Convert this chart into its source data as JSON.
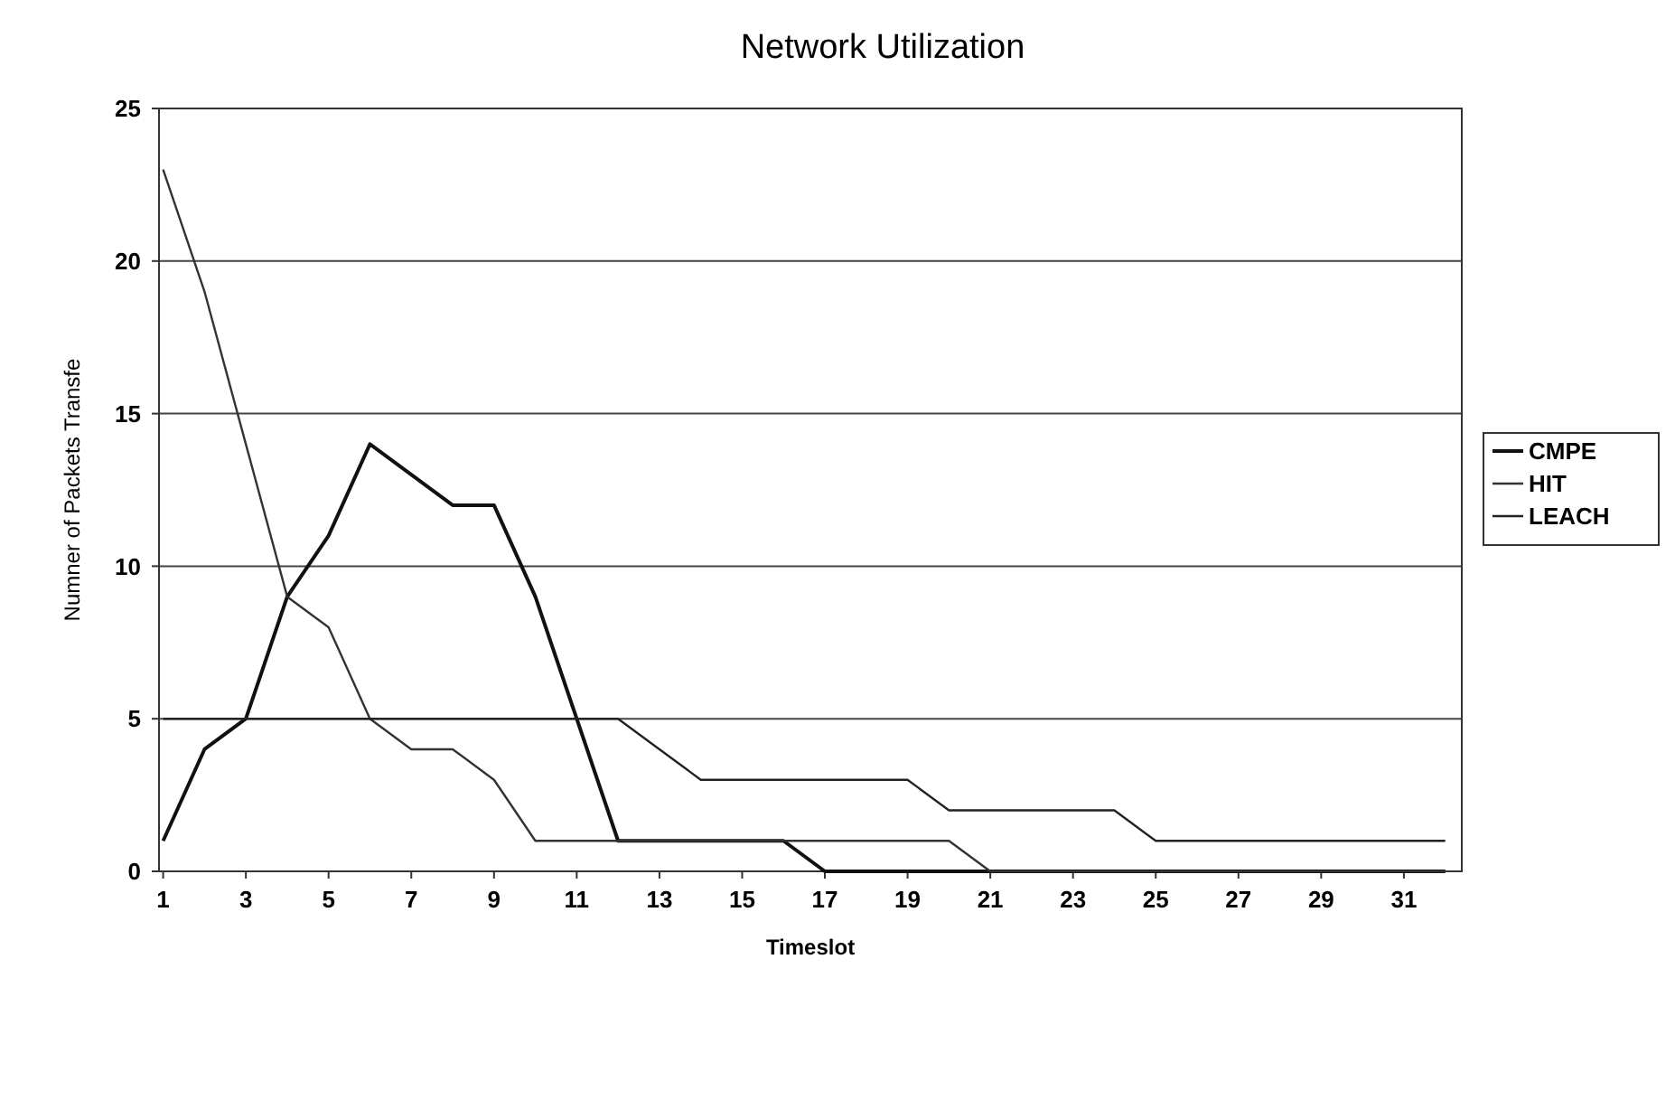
{
  "chart_data": {
    "type": "line",
    "title": "Network Utilization",
    "xlabel": "Timeslot",
    "ylabel": "Numner of Packets Transfe",
    "x": [
      1,
      2,
      3,
      4,
      5,
      6,
      7,
      8,
      9,
      10,
      11,
      12,
      13,
      14,
      15,
      16,
      17,
      18,
      19,
      20,
      21,
      22,
      23,
      24,
      25,
      26,
      27,
      28,
      29,
      30,
      31,
      32
    ],
    "xlim": [
      0.9,
      32.4
    ],
    "xticks": [
      1,
      3,
      5,
      7,
      9,
      11,
      13,
      15,
      17,
      19,
      21,
      23,
      25,
      27,
      29,
      31
    ],
    "ylim": [
      0,
      25
    ],
    "yticks": [
      0,
      5,
      10,
      15,
      20,
      25
    ],
    "grid": "y",
    "legend": "right",
    "line_style": "solid",
    "series": [
      {
        "name": "CMPE",
        "color": "#111111",
        "values": [
          1,
          4,
          5,
          9,
          11,
          14,
          13,
          12,
          12,
          9,
          5,
          1,
          1,
          1,
          1,
          1,
          0,
          0,
          0,
          0,
          0,
          0,
          0,
          0,
          0,
          0,
          0,
          0,
          0,
          0,
          0,
          0
        ]
      },
      {
        "name": "HIT",
        "color": "#333333",
        "values": [
          23,
          19,
          14,
          9,
          8,
          5,
          4,
          4,
          3,
          1,
          1,
          1,
          1,
          1,
          1,
          1,
          1,
          1,
          1,
          1,
          0,
          0,
          0,
          0,
          0,
          0,
          0,
          0,
          0,
          0,
          0,
          0
        ]
      },
      {
        "name": "LEACH",
        "color": "#222222",
        "values": [
          5,
          5,
          5,
          5,
          5,
          5,
          5,
          5,
          5,
          5,
          5,
          5,
          4,
          3,
          3,
          3,
          3,
          3,
          3,
          2,
          2,
          2,
          2,
          2,
          1,
          1,
          1,
          1,
          1,
          1,
          1,
          1
        ]
      }
    ]
  }
}
